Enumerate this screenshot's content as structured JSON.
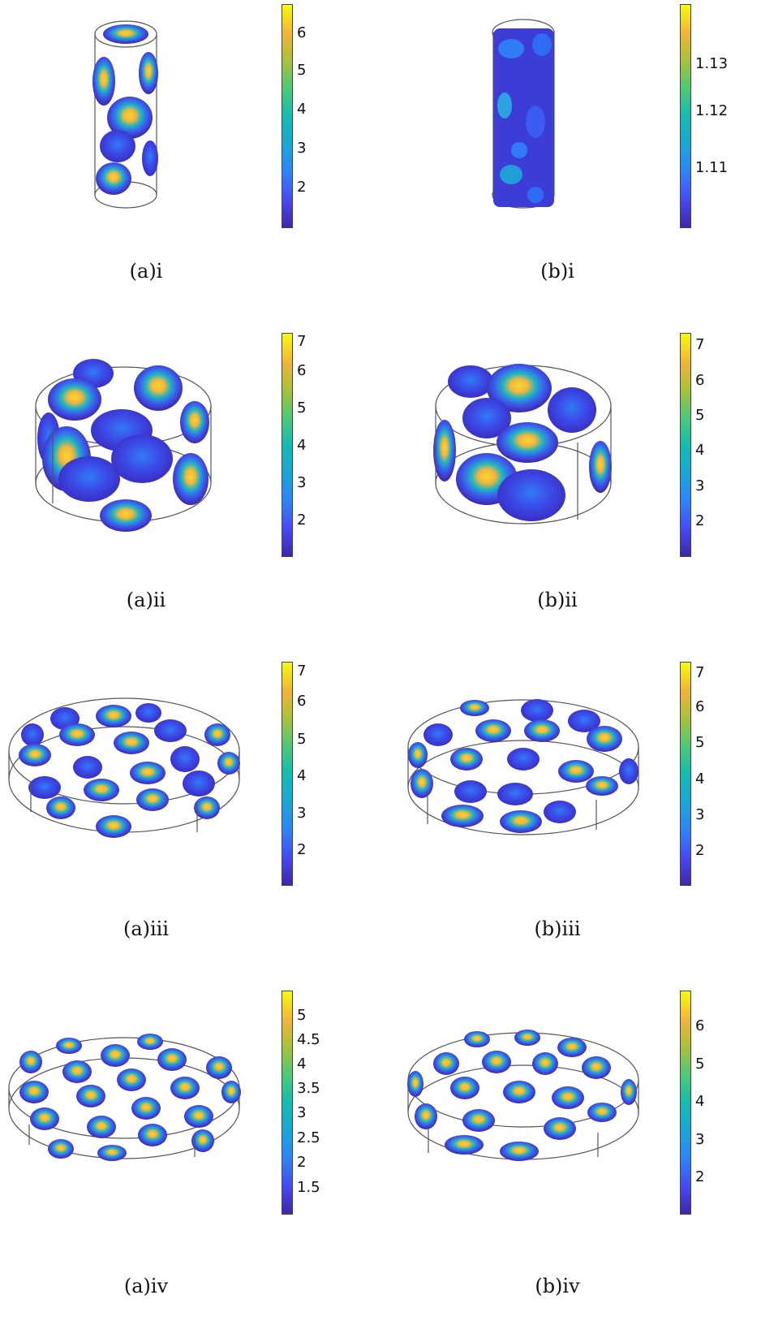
{
  "panels": [
    {
      "id": "a-i",
      "caption": "(a)i",
      "ticks": [
        "6",
        "5",
        "4",
        "3",
        "2"
      ]
    },
    {
      "id": "b-i",
      "caption": "(b)i",
      "ticks": [
        "1.13",
        "1.12",
        "1.11"
      ]
    },
    {
      "id": "a-ii",
      "caption": "(a)ii",
      "ticks": [
        "7",
        "6",
        "5",
        "4",
        "3",
        "2"
      ]
    },
    {
      "id": "b-ii",
      "caption": "(b)ii",
      "ticks": [
        "7",
        "6",
        "5",
        "4",
        "3",
        "2"
      ]
    },
    {
      "id": "a-iii",
      "caption": "(a)iii",
      "ticks": [
        "7",
        "6",
        "5",
        "4",
        "3",
        "2"
      ]
    },
    {
      "id": "b-iii",
      "caption": "(b)iii",
      "ticks": [
        "7",
        "6",
        "5",
        "4",
        "3",
        "2"
      ]
    },
    {
      "id": "a-iv",
      "caption": "(a)iv",
      "ticks": [
        "5",
        "4.5",
        "4",
        "3.5",
        "3",
        "2.5",
        "2",
        "1.5"
      ]
    },
    {
      "id": "b-iv",
      "caption": "(b)iv",
      "ticks": [
        "6",
        "5",
        "4",
        "3",
        "2"
      ]
    }
  ],
  "colors": {
    "low": "#3e26a8",
    "mid": "#14bcb1",
    "high": "#f8fa0d",
    "outline": "#555555"
  }
}
